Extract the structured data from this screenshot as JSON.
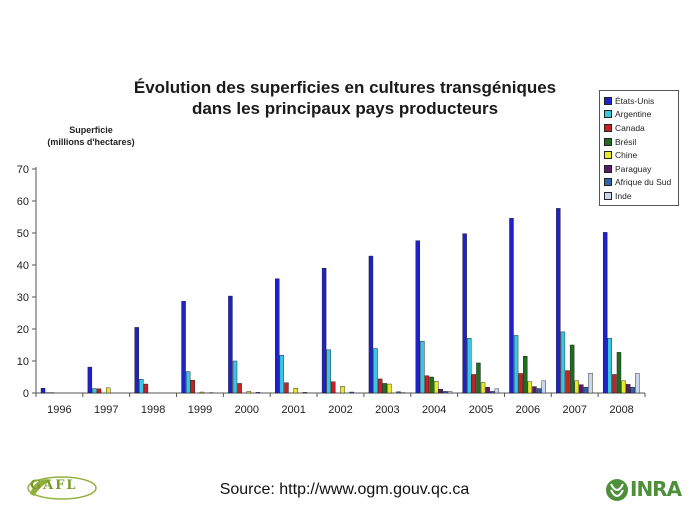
{
  "chart_data": {
    "type": "bar",
    "title": [
      "Évolution des superficies en cultures transgéniques",
      "dans les principaux pays producteurs"
    ],
    "ylabel": [
      "Superficie",
      "(millions d'hectares)"
    ],
    "ylim": [
      0,
      70
    ],
    "yticks": [
      "0",
      "10",
      "20",
      "30",
      "40",
      "50",
      "60",
      "70"
    ],
    "grid": false,
    "legend_position": "top-right",
    "categories": [
      "1996",
      "1997",
      "1998",
      "1999",
      "2000",
      "2001",
      "2002",
      "2003",
      "2004",
      "2005",
      "2006",
      "2007",
      "2008"
    ],
    "series": [
      {
        "name": "États-Unis",
        "color": "#1f22c8",
        "values": [
          1.5,
          8.1,
          20.5,
          28.7,
          30.3,
          35.7,
          39.0,
          42.8,
          47.6,
          49.8,
          54.6,
          57.7,
          50.2
        ]
      },
      {
        "name": "Argentine",
        "color": "#39c6e0",
        "values": [
          0.1,
          1.4,
          4.3,
          6.7,
          10.0,
          11.8,
          13.5,
          13.9,
          16.2,
          17.1,
          18.0,
          19.1,
          17.1
        ]
      },
      {
        "name": "Canada",
        "color": "#c62222",
        "values": [
          0.1,
          1.3,
          2.8,
          4.0,
          3.0,
          3.2,
          3.5,
          4.4,
          5.4,
          5.8,
          6.1,
          7.0,
          5.8
        ]
      },
      {
        "name": "Brésil",
        "color": "#1f6d1f",
        "values": [
          0,
          0,
          0,
          0,
          0,
          0,
          0,
          3.0,
          5.0,
          9.4,
          11.5,
          15.0,
          12.7
        ]
      },
      {
        "name": "Chine",
        "color": "#e9e92a",
        "values": [
          0,
          1.6,
          0,
          0.3,
          0.5,
          1.5,
          2.1,
          2.8,
          3.7,
          3.3,
          3.5,
          3.8,
          3.8
        ]
      },
      {
        "name": "Paraguay",
        "color": "#5a1a6a",
        "values": [
          0,
          0,
          0,
          0,
          0,
          0,
          0,
          0,
          1.2,
          1.8,
          2.0,
          2.6,
          2.7
        ]
      },
      {
        "name": "Afrique du Sud",
        "color": "#3060b0",
        "values": [
          0,
          0,
          0,
          0.1,
          0.2,
          0.2,
          0.3,
          0.4,
          0.5,
          0.5,
          1.4,
          1.8,
          1.8
        ]
      },
      {
        "name": "Inde",
        "color": "#c8d6ee",
        "values": [
          0,
          0,
          0,
          0,
          0,
          0,
          0,
          0.1,
          0.5,
          1.3,
          3.8,
          6.2,
          6.1
        ]
      }
    ]
  },
  "source": "Source: http://www.ogm.gouv.qc.ca",
  "logos": {
    "left": "GAFL",
    "right": "INRA"
  }
}
